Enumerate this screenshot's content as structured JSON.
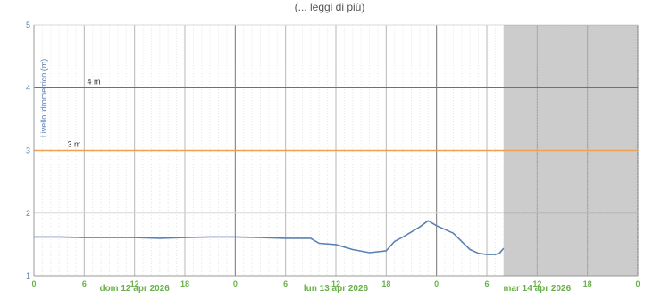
{
  "header": {
    "text": "(... leggi di più)"
  },
  "chart_data": {
    "type": "line",
    "ylabel": "Livello idrometrico (m)",
    "ylim": [
      1,
      5
    ],
    "y_ticks": [
      "1",
      "2",
      "3",
      "4",
      "5"
    ],
    "x_start": "2026-04-12T00:00",
    "x_end": "2026-04-15T00:00",
    "x_tick_labels": [
      "0",
      "6",
      "12",
      "18",
      "0",
      "6",
      "12",
      "18",
      "0",
      "6",
      "12",
      "18",
      "0"
    ],
    "day_labels": [
      {
        "text": "dom 12 apr 2026",
        "at": "2026-04-12T12:00"
      },
      {
        "text": "lun 13 apr 2026",
        "at": "2026-04-13T12:00"
      },
      {
        "text": "mar 14 apr 2026",
        "at": "2026-04-14T12:00"
      }
    ],
    "thresholds": [
      {
        "label": "4 m",
        "value": 4,
        "color": "#e0404a"
      },
      {
        "label": "3 m",
        "value": 3,
        "color": "#f0a050"
      }
    ],
    "forecast_shading": {
      "from": "2026-04-14T08:00",
      "to": "2026-04-15T00:00"
    },
    "series": [
      {
        "color": "#5b82b4",
        "points": [
          [
            "2026-04-12T00:00",
            1.62
          ],
          [
            "2026-04-12T03:00",
            1.62
          ],
          [
            "2026-04-12T06:00",
            1.61
          ],
          [
            "2026-04-12T09:00",
            1.61
          ],
          [
            "2026-04-12T12:00",
            1.61
          ],
          [
            "2026-04-12T15:00",
            1.6
          ],
          [
            "2026-04-12T18:00",
            1.61
          ],
          [
            "2026-04-12T21:00",
            1.62
          ],
          [
            "2026-04-13T00:00",
            1.62
          ],
          [
            "2026-04-13T03:00",
            1.61
          ],
          [
            "2026-04-13T06:00",
            1.6
          ],
          [
            "2026-04-13T09:00",
            1.6
          ],
          [
            "2026-04-13T10:00",
            1.52
          ],
          [
            "2026-04-13T12:00",
            1.5
          ],
          [
            "2026-04-13T14:00",
            1.42
          ],
          [
            "2026-04-13T16:00",
            1.37
          ],
          [
            "2026-04-13T18:00",
            1.4
          ],
          [
            "2026-04-13T19:00",
            1.55
          ],
          [
            "2026-04-13T20:00",
            1.62
          ],
          [
            "2026-04-13T22:00",
            1.78
          ],
          [
            "2026-04-13T23:00",
            1.88
          ],
          [
            "2026-04-14T00:00",
            1.8
          ],
          [
            "2026-04-14T02:00",
            1.68
          ],
          [
            "2026-04-14T03:00",
            1.55
          ],
          [
            "2026-04-14T04:00",
            1.42
          ],
          [
            "2026-04-14T05:00",
            1.36
          ],
          [
            "2026-04-14T06:00",
            1.34
          ],
          [
            "2026-04-14T07:00",
            1.34
          ],
          [
            "2026-04-14T07:30",
            1.36
          ],
          [
            "2026-04-14T08:00",
            1.44
          ]
        ]
      }
    ],
    "grid": true
  }
}
